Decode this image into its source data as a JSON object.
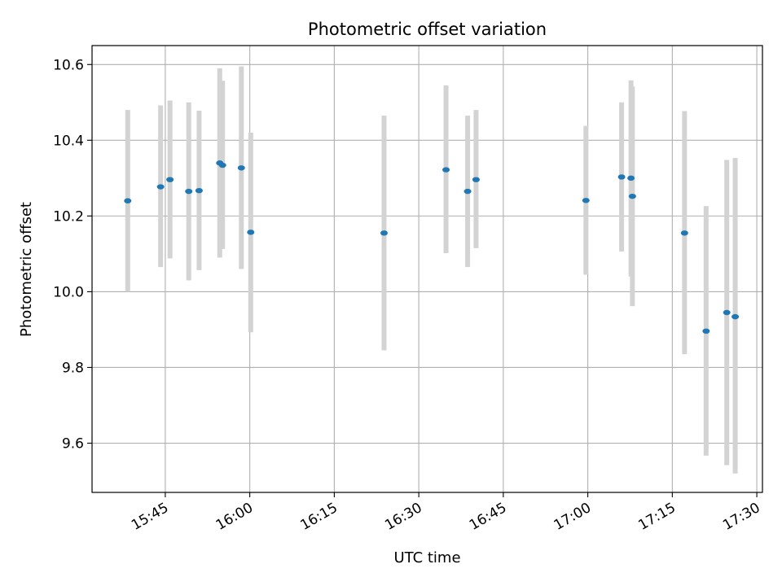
{
  "chart_data": {
    "type": "scatter",
    "title": "Photometric offset variation",
    "xlabel": "UTC time",
    "ylabel": "Photometric offset",
    "x_ticks": [
      "15:45",
      "16:00",
      "16:15",
      "16:30",
      "16:45",
      "17:00",
      "17:15",
      "17:30"
    ],
    "y_ticks": [
      "9.6",
      "9.8",
      "10.0",
      "10.2",
      "10.4",
      "10.6"
    ],
    "xlim": [
      "15:32",
      "17:31"
    ],
    "ylim": [
      9.47,
      10.65
    ],
    "grid": true,
    "errorbar_color": "#d3d3d3",
    "marker_color": "#1f77b4",
    "points": [
      {
        "x": "15:38:20",
        "y": 10.24,
        "yerr_low": 10.0,
        "yerr_high": 10.48
      },
      {
        "x": "15:44:10",
        "y": 10.277,
        "yerr_low": 10.065,
        "yerr_high": 10.492
      },
      {
        "x": "15:45:50",
        "y": 10.296,
        "yerr_low": 10.088,
        "yerr_high": 10.505
      },
      {
        "x": "15:49:10",
        "y": 10.265,
        "yerr_low": 10.03,
        "yerr_high": 10.5
      },
      {
        "x": "15:51:00",
        "y": 10.267,
        "yerr_low": 10.057,
        "yerr_high": 10.478
      },
      {
        "x": "15:54:40",
        "y": 10.34,
        "yerr_low": 10.09,
        "yerr_high": 10.59
      },
      {
        "x": "15:55:10",
        "y": 10.334,
        "yerr_low": 10.113,
        "yerr_high": 10.557
      },
      {
        "x": "15:58:30",
        "y": 10.327,
        "yerr_low": 10.06,
        "yerr_high": 10.595
      },
      {
        "x": "16:00:10",
        "y": 10.157,
        "yerr_low": 9.893,
        "yerr_high": 10.42
      },
      {
        "x": "16:23:50",
        "y": 10.155,
        "yerr_low": 9.845,
        "yerr_high": 10.465
      },
      {
        "x": "16:34:50",
        "y": 10.322,
        "yerr_low": 10.102,
        "yerr_high": 10.545
      },
      {
        "x": "16:38:40",
        "y": 10.265,
        "yerr_low": 10.065,
        "yerr_high": 10.465
      },
      {
        "x": "16:40:10",
        "y": 10.296,
        "yerr_low": 10.115,
        "yerr_high": 10.48
      },
      {
        "x": "16:59:40",
        "y": 10.241,
        "yerr_low": 10.045,
        "yerr_high": 10.438
      },
      {
        "x": "17:06:00",
        "y": 10.303,
        "yerr_low": 10.106,
        "yerr_high": 10.5
      },
      {
        "x": "17:07:40",
        "y": 10.3,
        "yerr_low": 10.04,
        "yerr_high": 10.558
      },
      {
        "x": "17:07:55",
        "y": 10.252,
        "yerr_low": 9.962,
        "yerr_high": 10.542
      },
      {
        "x": "17:17:10",
        "y": 10.155,
        "yerr_low": 9.835,
        "yerr_high": 10.477
      },
      {
        "x": "17:21:00",
        "y": 9.896,
        "yerr_low": 9.567,
        "yerr_high": 10.226
      },
      {
        "x": "17:24:40",
        "y": 9.945,
        "yerr_low": 9.542,
        "yerr_high": 10.348
      },
      {
        "x": "17:26:10",
        "y": 9.934,
        "yerr_low": 9.52,
        "yerr_high": 10.353
      }
    ]
  }
}
